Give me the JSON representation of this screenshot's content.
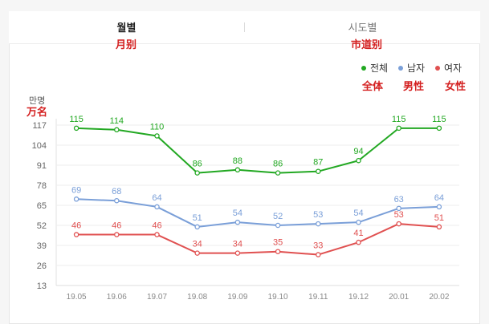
{
  "tabs": [
    {
      "label": "월별",
      "annotation": "月别",
      "active": true
    },
    {
      "label": "시도별",
      "annotation": "市道别",
      "active": false
    }
  ],
  "colors": {
    "total": "#22a822",
    "male": "#7a9fd8",
    "female": "#e05050",
    "grid": "#eeeeee",
    "axis_text": "#666666"
  },
  "unit_label": "만명",
  "unit_annotation": "万名",
  "legend": [
    {
      "label": "전체",
      "annotation": "全体",
      "color": "#22a822"
    },
    {
      "label": "남자",
      "annotation": "男性",
      "color": "#7a9fd8"
    },
    {
      "label": "여자",
      "annotation": "女性",
      "color": "#e05050"
    }
  ],
  "chart_data": {
    "type": "line",
    "categories": [
      "19.05",
      "19.06",
      "19.07",
      "19.08",
      "19.09",
      "19.10",
      "19.11",
      "19.12",
      "20.01",
      "20.02"
    ],
    "y_ticks": [
      13,
      26,
      39,
      52,
      65,
      78,
      91,
      104,
      117
    ],
    "ylim": [
      13,
      117
    ],
    "grid": true,
    "legend_position": "top-right",
    "series": [
      {
        "name": "전체",
        "color": "#22a822",
        "values": [
          115,
          114,
          110,
          86,
          88,
          86,
          87,
          94,
          115,
          115
        ]
      },
      {
        "name": "남자",
        "color": "#7a9fd8",
        "values": [
          69,
          68,
          64,
          51,
          54,
          52,
          53,
          54,
          63,
          64
        ]
      },
      {
        "name": "여자",
        "color": "#e05050",
        "values": [
          46,
          46,
          46,
          34,
          34,
          35,
          33,
          41,
          53,
          51
        ]
      }
    ]
  }
}
